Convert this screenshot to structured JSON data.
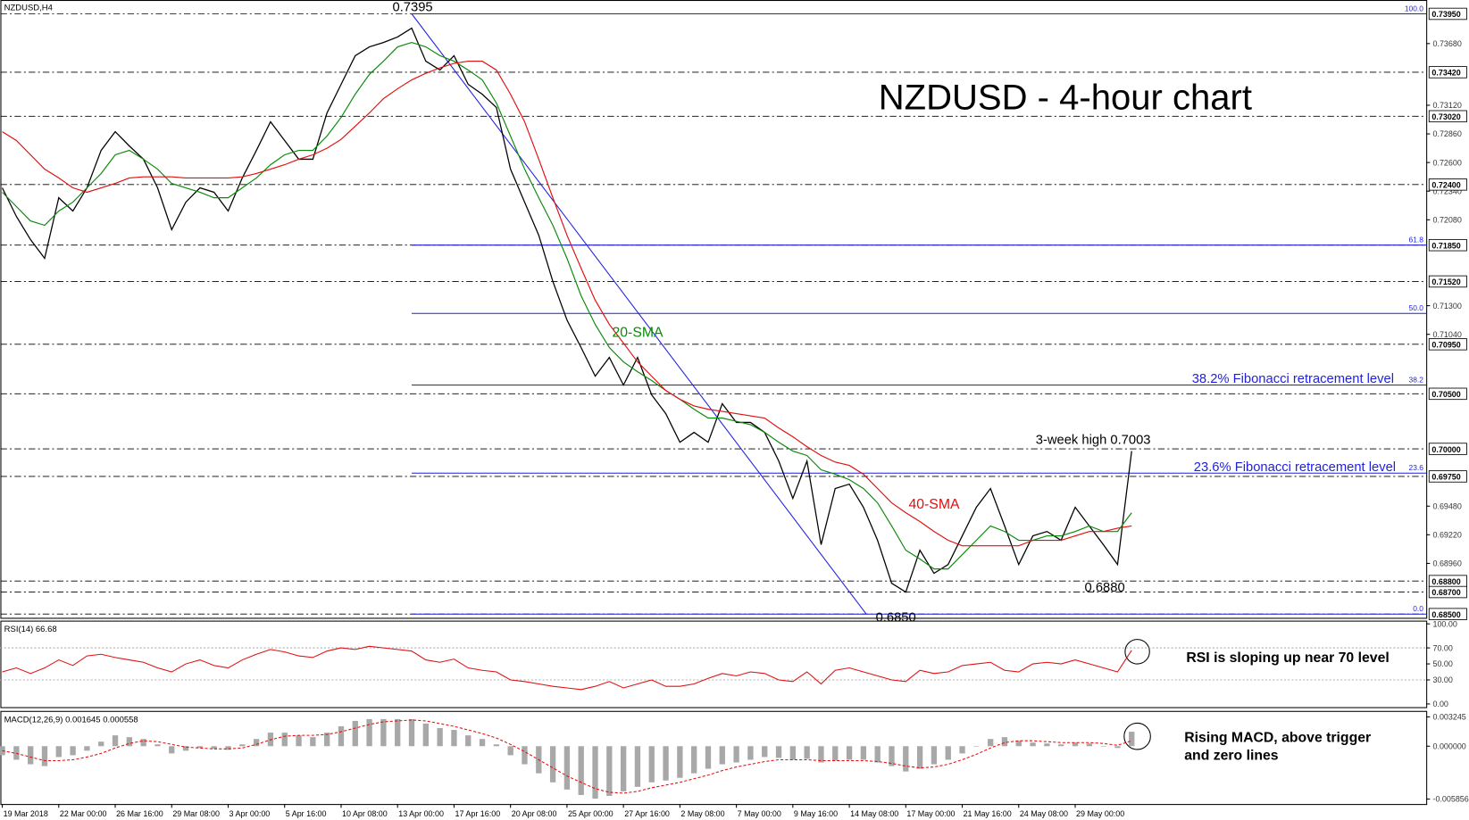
{
  "chart_data": [
    {
      "type": "line",
      "title": "NZDUSD - 4-hour chart",
      "symbol": "NZDUSD,H4",
      "categories": [
        "19 Mar 2018",
        null,
        null,
        null,
        "22 Mar 00:00",
        null,
        null,
        null,
        "26 Mar 16:00",
        null,
        null,
        null,
        "29 Mar 08:00",
        null,
        null,
        null,
        "3 Apr 00:00",
        null,
        null,
        null,
        "5 Apr 16:00",
        null,
        null,
        null,
        "10 Apr 08:00",
        null,
        null,
        null,
        "13 Apr 00:00",
        null,
        null,
        null,
        "17 Apr 16:00",
        null,
        null,
        null,
        "20 Apr 08:00",
        null,
        null,
        null,
        "25 Apr 00:00",
        null,
        null,
        null,
        "27 Apr 16:00",
        null,
        null,
        null,
        "2 May 08:00",
        null,
        null,
        null,
        "7 May 00:00",
        null,
        null,
        null,
        "9 May 16:00",
        null,
        null,
        null,
        "14 May 08:00",
        null,
        null,
        null,
        "17 May 00:00",
        null,
        null,
        null,
        "21 May 16:00",
        null,
        null,
        null,
        "24 May 08:00",
        null,
        null,
        null,
        "29 May 00:00",
        null,
        null,
        null,
        null
      ],
      "series": [
        {
          "color": "#000000",
          "values": [
            0.7237,
            0.7211,
            0.719,
            0.7173,
            0.7228,
            0.7216,
            0.7237,
            0.7271,
            0.7288,
            0.7275,
            0.7263,
            0.7237,
            0.7199,
            0.7224,
            0.7237,
            0.7233,
            0.7216,
            0.7246,
            0.7271,
            0.7297,
            0.728,
            0.7263,
            0.7263,
            0.7305,
            0.7331,
            0.7357,
            0.7365,
            0.7369,
            0.7374,
            0.7382,
            0.7352,
            0.7344,
            0.7357,
            0.7331,
            0.7322,
            0.731,
            0.7254,
            0.7224,
            0.7194,
            0.7152,
            0.7117,
            0.7092,
            0.7066,
            0.7083,
            0.7058,
            0.7083,
            0.7049,
            0.7032,
            0.7006,
            0.7015,
            0.7006,
            0.7041,
            0.7024,
            0.7024,
            0.7015,
            0.6989,
            0.6955,
            0.6989,
            0.6913,
            0.6964,
            0.6968,
            0.6947,
            0.6917,
            0.6878,
            0.687,
            0.6908,
            0.6887,
            0.6895,
            0.6921,
            0.6947,
            0.6964,
            0.693,
            0.6895,
            0.6921,
            0.6925,
            0.6917,
            0.6947,
            0.693,
            0.6913,
            0.6895,
            0.6998
          ]
        },
        {
          "name": "20-SMA",
          "color": "#0a8a0a",
          "values": [
            0.7233,
            0.722,
            0.7207,
            0.7203,
            0.7216,
            0.7224,
            0.7237,
            0.725,
            0.7267,
            0.7271,
            0.7263,
            0.7254,
            0.7241,
            0.7237,
            0.7233,
            0.7228,
            0.7228,
            0.7237,
            0.7246,
            0.7258,
            0.7267,
            0.7271,
            0.7271,
            0.7284,
            0.7301,
            0.7322,
            0.734,
            0.7352,
            0.7365,
            0.7369,
            0.7365,
            0.7357,
            0.7352,
            0.7344,
            0.7335,
            0.7314,
            0.7284,
            0.7254,
            0.7228,
            0.7203,
            0.7173,
            0.7139,
            0.7113,
            0.7092,
            0.7079,
            0.707,
            0.7062,
            0.7053,
            0.7045,
            0.7036,
            0.7028,
            0.7028,
            0.7025,
            0.7022,
            0.7015,
            0.7006,
            0.6998,
            0.6994,
            0.6981,
            0.6977,
            0.6972,
            0.6964,
            0.6951,
            0.693,
            0.6908,
            0.69,
            0.6891,
            0.6891,
            0.6904,
            0.6917,
            0.693,
            0.6925,
            0.6917,
            0.6917,
            0.6921,
            0.6921,
            0.6925,
            0.693,
            0.6925,
            0.6925,
            0.6942
          ]
        },
        {
          "name": "40-SMA",
          "color": "#e01010",
          "values": [
            0.7288,
            0.728,
            0.7267,
            0.7254,
            0.7246,
            0.7237,
            0.7233,
            0.7237,
            0.7241,
            0.7246,
            0.7247,
            0.7247,
            0.7247,
            0.7246,
            0.7246,
            0.7246,
            0.7246,
            0.7247,
            0.725,
            0.7254,
            0.7258,
            0.7263,
            0.7267,
            0.7273,
            0.7281,
            0.7293,
            0.7305,
            0.7318,
            0.7327,
            0.7335,
            0.7341,
            0.7346,
            0.735,
            0.7352,
            0.7352,
            0.7344,
            0.7322,
            0.7297,
            0.7263,
            0.7228,
            0.7194,
            0.7164,
            0.7135,
            0.7113,
            0.7096,
            0.7079,
            0.7066,
            0.7053,
            0.7045,
            0.7039,
            0.7036,
            0.7034,
            0.7032,
            0.703,
            0.7028,
            0.7019,
            0.7011,
            0.7002,
            0.6994,
            0.6988,
            0.6985,
            0.6977,
            0.6964,
            0.6951,
            0.6942,
            0.6934,
            0.6925,
            0.6917,
            0.6912,
            0.6912,
            0.6912,
            0.6912,
            0.6912,
            0.6917,
            0.6917,
            0.6917,
            0.6921,
            0.6925,
            0.6925,
            0.6928,
            0.693
          ]
        }
      ],
      "ylim": [
        0.68466,
        0.7405
      ],
      "yticks": [
        {
          "value": 0.7368,
          "label": "0.73680"
        },
        {
          "value": 0.7312,
          "label": "0.73120"
        },
        {
          "value": 0.7286,
          "label": "0.72860"
        },
        {
          "value": 0.726,
          "label": "0.72600"
        },
        {
          "value": 0.7234,
          "label": "0.72340"
        },
        {
          "value": 0.7208,
          "label": "0.72080"
        },
        {
          "value": 0.713,
          "label": "0.71300"
        },
        {
          "value": 0.7104,
          "label": "0.71040"
        },
        {
          "value": 0.6948,
          "label": "0.69480"
        },
        {
          "value": 0.6922,
          "label": "0.69220"
        },
        {
          "value": 0.6896,
          "label": "0.68960"
        }
      ],
      "levels": [
        {
          "value": 0.7395,
          "label": "0.73950"
        },
        {
          "value": 0.7342,
          "label": "0.73420"
        },
        {
          "value": 0.7302,
          "label": "0.73020"
        },
        {
          "value": 0.724,
          "label": "0.72400"
        },
        {
          "value": 0.7185,
          "label": "0.71850"
        },
        {
          "value": 0.7152,
          "label": "0.71520"
        },
        {
          "value": 0.7095,
          "label": "0.70950"
        },
        {
          "value": 0.705,
          "label": "0.70500"
        },
        {
          "value": 0.7,
          "label": "0.70000"
        },
        {
          "value": 0.6975,
          "label": "0.69750"
        },
        {
          "value": 0.688,
          "label": "0.68800"
        },
        {
          "value": 0.687,
          "label": "0.68700"
        },
        {
          "value": 0.685,
          "label": "0.68500"
        }
      ],
      "fib_color": "#1f1fe0",
      "fib": [
        {
          "level": {
            "value": 100,
            "label": "100.0"
          },
          "price": 0.7395
        },
        {
          "level": 61.8,
          "price": 0.7185
        },
        {
          "level": {
            "value": 50,
            "label": "50.0"
          },
          "price": 0.7123
        },
        {
          "level": 38.2,
          "price": 0.7058
        },
        {
          "level": 23.6,
          "price": 0.6978
        },
        {
          "level": {
            "value": 0,
            "label": "0.0"
          },
          "price": 0.685
        }
      ],
      "annotations": [
        "0.7395",
        "20-SMA",
        "40-SMA",
        "38.2% Fibonacci retracement level",
        "23.6% Fibonacci retracement level",
        "3-week high 0.7003",
        "0.6880",
        "0.6850"
      ]
    },
    {
      "type": "line",
      "title": "RSI(14) 66.68",
      "color": "#e01010",
      "values": [
        40,
        45,
        38,
        45,
        55,
        48,
        60,
        62,
        58,
        55,
        52,
        45,
        40,
        50,
        55,
        48,
        45,
        55,
        62,
        68,
        65,
        60,
        58,
        66,
        70,
        68,
        72,
        70,
        68,
        66,
        55,
        52,
        56,
        45,
        42,
        40,
        30,
        28,
        25,
        22,
        20,
        18,
        22,
        28,
        20,
        25,
        30,
        22,
        22,
        25,
        32,
        38,
        35,
        40,
        38,
        30,
        28,
        40,
        25,
        42,
        45,
        40,
        35,
        30,
        28,
        42,
        38,
        40,
        48,
        50,
        52,
        42,
        40,
        50,
        52,
        50,
        55,
        50,
        45,
        40,
        67
      ],
      "ylim": [
        -4,
        104
      ],
      "yticks": [
        {
          "value": 100,
          "label": "100.00"
        },
        {
          "value": 70,
          "label": "70.00"
        },
        {
          "value": 50,
          "label": "50.00"
        },
        {
          "value": 30,
          "label": "30.00"
        },
        {
          "value": 0,
          "label": "0.00"
        }
      ],
      "levels": [
        70,
        30
      ],
      "note": "RSI is sloping up near 70 level"
    },
    {
      "type": "bar",
      "title": "MACD(12,26,9) 0.001645 0.000558",
      "series": [
        {
          "color": "#a8a8a8",
          "values": [
            -0.001,
            -0.0015,
            -0.002,
            -0.0022,
            -0.0012,
            -0.001,
            -0.0005,
            0.0005,
            0.0012,
            0.001,
            0.0008,
            0.0002,
            -0.0008,
            -0.0005,
            -0.0002,
            -0.0003,
            -0.0004,
            0.0002,
            0.0008,
            0.0015,
            0.0015,
            0.0012,
            0.001,
            0.0015,
            0.0022,
            0.0028,
            0.003,
            0.003,
            0.003,
            0.003,
            0.0025,
            0.002,
            0.0018,
            0.0012,
            0.0008,
            0.0002,
            -0.001,
            -0.002,
            -0.003,
            -0.004,
            -0.0048,
            -0.0054,
            -0.0058,
            -0.0055,
            -0.005,
            -0.0045,
            -0.004,
            -0.0038,
            -0.0035,
            -0.003,
            -0.0025,
            -0.002,
            -0.0018,
            -0.0015,
            -0.0012,
            -0.0013,
            -0.0015,
            -0.0014,
            -0.0018,
            -0.0016,
            -0.0015,
            -0.0015,
            -0.0018,
            -0.0022,
            -0.0028,
            -0.0025,
            -0.002,
            -0.0015,
            -0.0008,
            0,
            0.0008,
            0.001,
            0.0006,
            0.0004,
            0.0003,
            0.0002,
            0.0004,
            0.0003,
            0,
            -0.0002,
            0.0016
          ]
        },
        {
          "type": "line",
          "color": "#e01010",
          "values": [
            -0.0005,
            -0.0008,
            -0.0012,
            -0.0016,
            -0.0016,
            -0.0015,
            -0.0012,
            -0.0008,
            -0.0002,
            0.0003,
            0.0006,
            0.0005,
            0.0002,
            -0.0001,
            -0.0002,
            -0.0003,
            -0.0003,
            -0.0002,
            0.0002,
            0.0007,
            0.0011,
            0.0012,
            0.0012,
            0.0013,
            0.0016,
            0.002,
            0.0024,
            0.0027,
            0.0028,
            0.0029,
            0.0028,
            0.0025,
            0.0022,
            0.0018,
            0.0014,
            0.0009,
            0.0002,
            -0.0006,
            -0.0015,
            -0.0024,
            -0.0033,
            -0.004,
            -0.0047,
            -0.0051,
            -0.0052,
            -0.005,
            -0.0046,
            -0.0043,
            -0.004,
            -0.0036,
            -0.0032,
            -0.0027,
            -0.0023,
            -0.002,
            -0.0017,
            -0.0015,
            -0.0015,
            -0.0015,
            -0.0016,
            -0.0016,
            -0.0016,
            -0.0016,
            -0.0017,
            -0.0019,
            -0.0022,
            -0.0024,
            -0.0023,
            -0.002,
            -0.0015,
            -0.0009,
            -0.0002,
            0.0004,
            0.0006,
            0.0006,
            0.0005,
            0.0004,
            0.0004,
            0.0004,
            0.0003,
            0.0001,
            0.0006
          ]
        }
      ],
      "ylim": [
        -0.0064,
        0.0038
      ],
      "yticks": [
        0.003245,
        {
          "value": 0,
          "label": "0.000000"
        },
        -0.005856
      ],
      "note": [
        "Rising MACD, above trigger",
        "and zero lines"
      ]
    }
  ]
}
